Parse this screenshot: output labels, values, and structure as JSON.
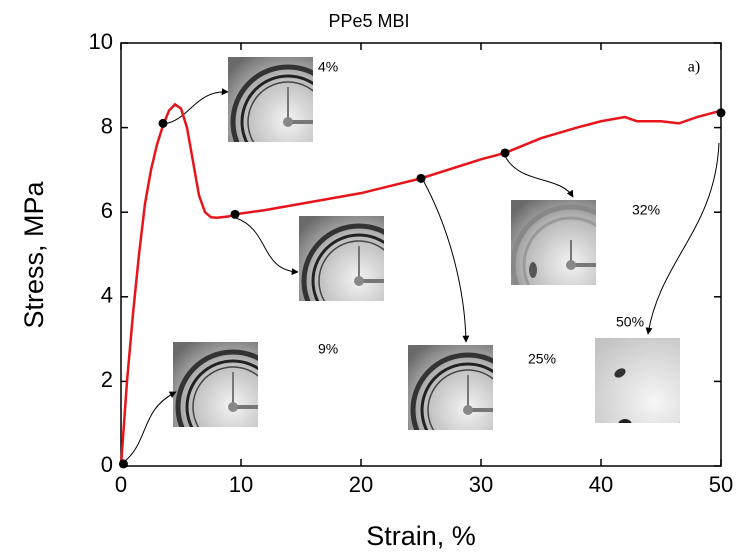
{
  "chart_data": {
    "type": "line",
    "title": "PPe5 MBI",
    "x_label": "Strain, %",
    "y_label": "Stress, MPa",
    "x": [
      0,
      0.5,
      1,
      1.5,
      2,
      2.5,
      3,
      3.5,
      4,
      4.5,
      5,
      5.5,
      6,
      6.5,
      7,
      7.5,
      8,
      9,
      9.5,
      12,
      15,
      20,
      25,
      30,
      32,
      35,
      38,
      40,
      42,
      43,
      45,
      46.5,
      48,
      50
    ],
    "series": [
      {
        "color": "#e8141b",
        "values": [
          0,
          2,
          3.6,
          5,
          6.2,
          7,
          7.6,
          8.05,
          8.4,
          8.55,
          8.45,
          8,
          7.2,
          6.4,
          6,
          5.88,
          5.87,
          5.9,
          5.95,
          6.05,
          6.2,
          6.45,
          6.8,
          7.25,
          7.4,
          7.75,
          8,
          8.15,
          8.25,
          8.15,
          8.15,
          8.1,
          8.25,
          8.4
        ]
      }
    ],
    "markers": {
      "color": "#000000",
      "x": [
        0.2,
        3.5,
        9.5,
        25,
        32,
        50
      ],
      "values": [
        0.05,
        8.1,
        5.95,
        6.8,
        7.4,
        8.35
      ]
    },
    "xlim": [
      0,
      50
    ],
    "xticks": [
      0,
      10,
      20,
      30,
      40,
      50
    ],
    "ylim": [
      0,
      10
    ],
    "yticks": [
      0,
      2,
      4,
      6,
      8,
      10
    ],
    "annotations": [
      "4%",
      "9%",
      "25%",
      "32%",
      "50%"
    ],
    "panel_label": "a)"
  }
}
